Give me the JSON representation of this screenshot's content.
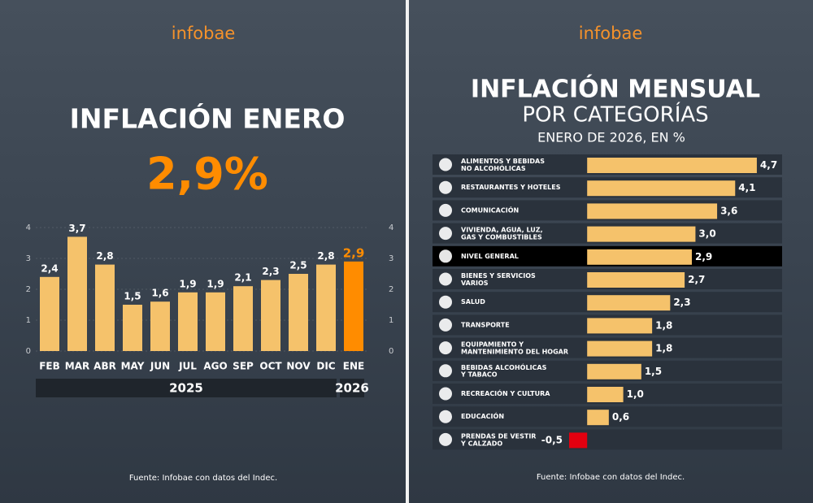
{
  "chart_data": [
    {
      "type": "bar",
      "logo": "infobae",
      "title": "INFLACIÓN ENERO",
      "headline": "2,9%",
      "categories": [
        "FEB",
        "MAR",
        "ABR",
        "MAY",
        "JUN",
        "JUL",
        "AGO",
        "SEP",
        "OCT",
        "NOV",
        "DIC",
        "ENE"
      ],
      "values": [
        2.4,
        3.7,
        2.8,
        1.5,
        1.6,
        1.9,
        1.9,
        2.1,
        2.3,
        2.5,
        2.8,
        2.9
      ],
      "value_labels": [
        "2,4",
        "3,7",
        "2,8",
        "1,5",
        "1,6",
        "1,9",
        "1,9",
        "2,1",
        "2,3",
        "2,5",
        "2,8",
        "2,9"
      ],
      "colors": [
        "#f5c26b",
        "#f5c26b",
        "#f5c26b",
        "#f5c26b",
        "#f5c26b",
        "#f5c26b",
        "#f5c26b",
        "#f5c26b",
        "#f5c26b",
        "#f5c26b",
        "#f5c26b",
        "#ff8c00"
      ],
      "groups": [
        {
          "label": "2025",
          "count": 11
        },
        {
          "label": "2026",
          "count": 1
        }
      ],
      "ylim": [
        0,
        4
      ],
      "yticks": [
        0,
        1,
        2,
        3,
        4
      ],
      "grid": true,
      "source": "Fuente: Infobae con datos del Indec."
    },
    {
      "type": "hbar",
      "logo": "infobae",
      "title": "INFLACIÓN MENSUAL",
      "subtitle": "POR CATEGORÍAS",
      "note": "ENERO DE 2026, EN %",
      "categories": [
        "ALIMENTOS Y BEBIDAS\nNO ALCOHÓLICAS",
        "RESTAURANTES Y HOTELES",
        "COMUNICACIÓN",
        "VIVIENDA, AGUA, LUZ,\nGAS Y COMBUSTIBLES",
        "NIVEL GENERAL",
        "BIENES Y SERVICIOS\nVARIOS",
        "SALUD",
        "TRANSPORTE",
        "EQUIPAMIENTO Y\nMANTENIMIENTO DEL HOGAR",
        "BEBIDAS ALCOHÓLICAS\nY TABACO",
        "RECREACIÓN Y CULTURA",
        "EDUCACIÓN",
        "PRENDAS DE VESTIR\nY CALZADO"
      ],
      "values": [
        4.7,
        4.1,
        3.6,
        3.0,
        2.9,
        2.7,
        2.3,
        1.8,
        1.8,
        1.5,
        1.0,
        0.6,
        -0.5
      ],
      "value_labels": [
        "4,7",
        "4,1",
        "3,6",
        "3,0",
        "2,9",
        "2,7",
        "2,3",
        "1,8",
        "1,8",
        "1,5",
        "1,0",
        "0,6",
        "-0,5"
      ],
      "colors": [
        "#f5c26b",
        "#f5c26b",
        "#f5c26b",
        "#f5c26b",
        "#f5c26b",
        "#f5c26b",
        "#f5c26b",
        "#f5c26b",
        "#f5c26b",
        "#f5c26b",
        "#f5c26b",
        "#f5c26b",
        "#e3000f"
      ],
      "row_colors": [
        "#2a323c",
        "#2a323c",
        "#2a323c",
        "#2a323c",
        "#000000",
        "#2a323c",
        "#2a323c",
        "#2a323c",
        "#2a323c",
        "#2a323c",
        "#2a323c",
        "#2a323c",
        "#2a323c"
      ],
      "xlim": [
        -0.5,
        5.4
      ],
      "source": "Fuente: Infobae con datos del Indec."
    }
  ]
}
